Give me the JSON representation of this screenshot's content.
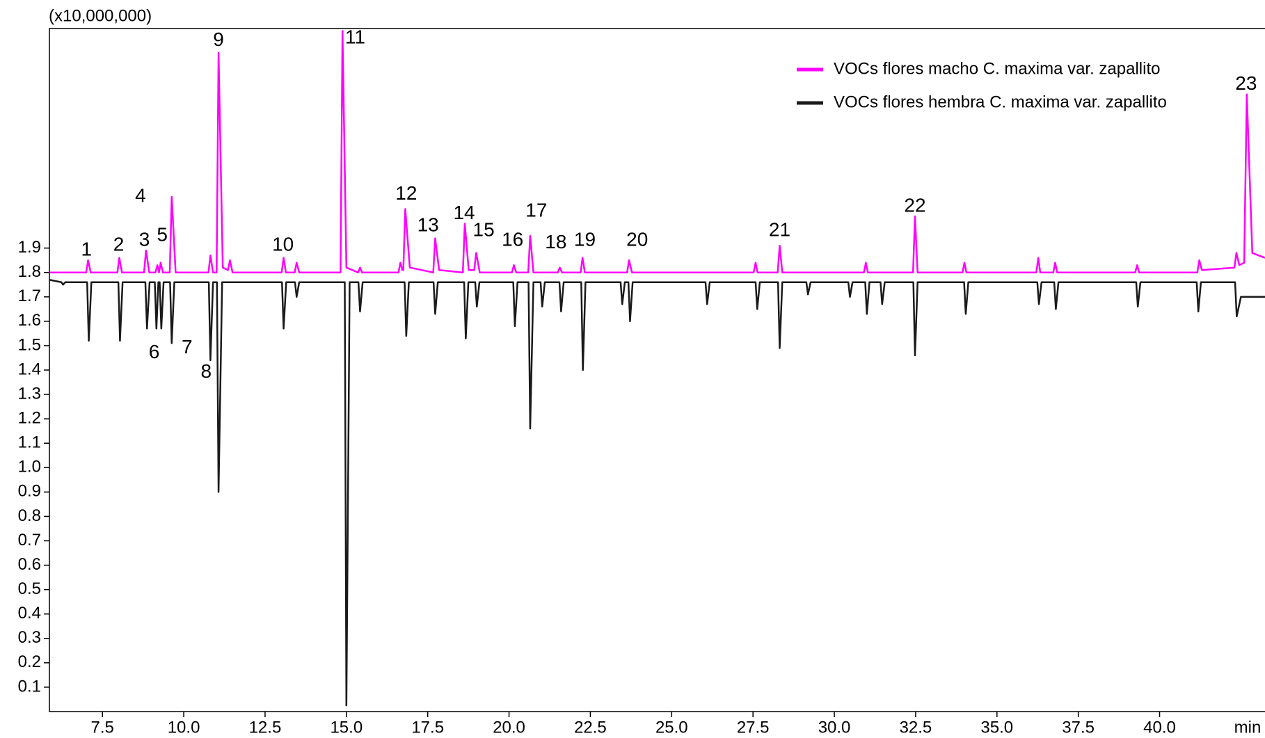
{
  "chart_data": {
    "type": "line",
    "y_unit_label": "(x10,000,000)",
    "x_label": "min",
    "xlim": [
      5.87,
      43.24
    ],
    "ylim": [
      0,
      2.8
    ],
    "xticks": [
      7.5,
      {
        "value": 10,
        "label": "10.0"
      },
      12.5,
      {
        "value": 15,
        "label": "15.0"
      },
      17.5,
      {
        "value": 20,
        "label": "20.0"
      },
      22.5,
      {
        "value": 25,
        "label": "25.0"
      },
      27.5,
      {
        "value": 30,
        "label": "30.0"
      },
      32.5,
      {
        "value": 35,
        "label": "35.0"
      },
      37.5,
      {
        "value": 40,
        "label": "40.0"
      }
    ],
    "yticks": [
      0.1,
      0.2,
      0.3,
      0.4,
      0.5,
      0.6,
      0.7,
      0.8,
      0.9,
      {
        "value": 1,
        "label": "1.0"
      },
      1.1,
      1.2,
      1.3,
      1.4,
      1.5,
      1.6,
      1.7,
      1.8,
      1.9
    ],
    "grid": false,
    "legend": "upper right",
    "series": [
      {
        "name": "VOCs flores macho C. maxima var. zapallito",
        "color": "#ff00ff",
        "x": [
          5.87,
          7.0,
          7.06,
          7.14,
          7.96,
          8.02,
          8.1,
          8.78,
          8.84,
          8.94,
          9.13,
          9.19,
          9.24,
          9.29,
          9.36,
          9.57,
          9.63,
          9.75,
          10.76,
          10.82,
          10.9,
          11.01,
          11.07,
          11.2,
          11.36,
          11.42,
          11.5,
          13.01,
          13.07,
          13.14,
          13.41,
          13.47,
          13.55,
          14.82,
          14.88,
          15.0,
          15.36,
          15.42,
          15.48,
          16.6,
          16.66,
          16.72,
          16.75,
          16.81,
          16.95,
          17.67,
          17.73,
          17.85,
          18.58,
          18.64,
          18.76,
          18.93,
          18.99,
          19.1,
          20.09,
          20.15,
          20.22,
          20.59,
          20.65,
          20.75,
          21.5,
          21.56,
          21.63,
          22.2,
          22.26,
          22.33,
          23.63,
          23.69,
          23.78,
          27.52,
          27.58,
          27.64,
          28.26,
          28.32,
          28.4,
          30.91,
          30.97,
          31.03,
          32.42,
          32.48,
          32.56,
          33.94,
          34.0,
          34.06,
          36.21,
          36.27,
          36.33,
          36.73,
          36.79,
          36.85,
          39.25,
          39.31,
          39.37,
          41.16,
          41.22,
          41.3,
          42.3,
          42.36,
          42.45,
          42.6,
          42.68,
          42.85,
          43.24
        ],
        "values": [
          1.8,
          1.8,
          1.85,
          1.8,
          1.8,
          1.86,
          1.8,
          1.8,
          1.89,
          1.8,
          1.8,
          1.83,
          1.8,
          1.84,
          1.8,
          1.8,
          2.11,
          1.8,
          1.8,
          1.87,
          1.8,
          1.8,
          2.7,
          1.82,
          1.81,
          1.85,
          1.8,
          1.8,
          1.86,
          1.8,
          1.8,
          1.84,
          1.8,
          1.8,
          2.79,
          1.82,
          1.8,
          1.82,
          1.8,
          1.8,
          1.84,
          1.81,
          1.81,
          2.06,
          1.82,
          1.8,
          1.94,
          1.81,
          1.8,
          2.0,
          1.81,
          1.81,
          1.88,
          1.8,
          1.8,
          1.83,
          1.8,
          1.8,
          1.95,
          1.8,
          1.8,
          1.82,
          1.8,
          1.8,
          1.86,
          1.8,
          1.8,
          1.85,
          1.8,
          1.8,
          1.84,
          1.8,
          1.8,
          1.91,
          1.8,
          1.8,
          1.84,
          1.8,
          1.8,
          2.03,
          1.8,
          1.8,
          1.84,
          1.8,
          1.8,
          1.86,
          1.8,
          1.8,
          1.84,
          1.8,
          1.8,
          1.83,
          1.8,
          1.8,
          1.85,
          1.81,
          1.82,
          1.88,
          1.83,
          1.84,
          2.53,
          1.88,
          1.86
        ]
      },
      {
        "name": "VOCs flores hembra C. maxima var. zapallito",
        "color": "#1a1a1a",
        "x": [
          5.87,
          6.24,
          6.29,
          6.36,
          7.03,
          7.08,
          7.16,
          7.99,
          8.04,
          8.12,
          8.82,
          8.87,
          8.95,
          9.11,
          9.16,
          9.22,
          9.26,
          9.31,
          9.38,
          9.58,
          9.63,
          9.71,
          10.77,
          10.82,
          10.9,
          11.02,
          11.07,
          11.18,
          13.02,
          13.07,
          13.15,
          13.42,
          13.47,
          13.55,
          14.95,
          15.0,
          15.1,
          15.37,
          15.42,
          15.5,
          16.79,
          16.84,
          16.92,
          17.68,
          17.73,
          17.81,
          18.62,
          18.67,
          18.75,
          18.96,
          19.01,
          19.09,
          20.13,
          20.18,
          20.26,
          20.6,
          20.65,
          20.75,
          20.97,
          21.02,
          21.1,
          21.55,
          21.6,
          21.68,
          22.22,
          22.27,
          22.35,
          23.43,
          23.48,
          23.56,
          23.67,
          23.72,
          23.8,
          26.04,
          26.09,
          26.17,
          27.58,
          27.63,
          27.71,
          28.27,
          28.32,
          28.4,
          29.14,
          29.19,
          29.27,
          30.43,
          30.48,
          30.56,
          30.95,
          31.0,
          31.08,
          31.42,
          31.47,
          31.55,
          32.43,
          32.48,
          32.56,
          33.99,
          34.04,
          34.12,
          36.24,
          36.29,
          36.37,
          36.76,
          36.81,
          36.89,
          39.28,
          39.33,
          39.41,
          41.14,
          41.19,
          41.27,
          42.32,
          42.37,
          42.5,
          43.24
        ],
        "values": [
          1.77,
          1.76,
          1.75,
          1.76,
          1.76,
          1.52,
          1.76,
          1.76,
          1.52,
          1.76,
          1.76,
          1.57,
          1.76,
          1.76,
          1.57,
          1.76,
          1.76,
          1.57,
          1.76,
          1.76,
          1.51,
          1.76,
          1.76,
          1.44,
          1.76,
          1.76,
          0.9,
          1.76,
          1.76,
          1.57,
          1.76,
          1.76,
          1.7,
          1.76,
          1.76,
          0.025,
          1.76,
          1.76,
          1.64,
          1.76,
          1.76,
          1.54,
          1.76,
          1.76,
          1.63,
          1.76,
          1.76,
          1.53,
          1.76,
          1.76,
          1.66,
          1.76,
          1.76,
          1.58,
          1.76,
          1.76,
          1.16,
          1.76,
          1.76,
          1.66,
          1.76,
          1.76,
          1.64,
          1.76,
          1.76,
          1.4,
          1.76,
          1.76,
          1.67,
          1.76,
          1.76,
          1.6,
          1.76,
          1.76,
          1.67,
          1.76,
          1.76,
          1.65,
          1.76,
          1.76,
          1.49,
          1.76,
          1.76,
          1.71,
          1.76,
          1.76,
          1.7,
          1.76,
          1.76,
          1.63,
          1.76,
          1.76,
          1.67,
          1.76,
          1.76,
          1.46,
          1.76,
          1.76,
          1.63,
          1.76,
          1.76,
          1.67,
          1.76,
          1.76,
          1.65,
          1.76,
          1.76,
          1.66,
          1.76,
          1.76,
          1.64,
          1.76,
          1.76,
          1.62,
          1.7,
          1.7
        ]
      }
    ],
    "annotations": [
      {
        "text": "1",
        "x": 7.01,
        "y": 1.89
      },
      {
        "text": "2",
        "x": 8.0,
        "y": 1.91
      },
      {
        "text": "3",
        "x": 8.79,
        "y": 1.93
      },
      {
        "text": "4",
        "x": 8.67,
        "y": 2.11
      },
      {
        "text": "5",
        "x": 9.34,
        "y": 1.95
      },
      {
        "text": "6",
        "x": 9.09,
        "y": 1.47
      },
      {
        "text": "7",
        "x": 10.1,
        "y": 1.49
      },
      {
        "text": "8",
        "x": 10.69,
        "y": 1.39
      },
      {
        "text": "9",
        "x": 11.07,
        "y": 2.75
      },
      {
        "text": "10",
        "x": 13.05,
        "y": 1.91
      },
      {
        "text": "11",
        "x": 15.27,
        "y": 2.76
      },
      {
        "text": "12",
        "x": 16.84,
        "y": 2.12
      },
      {
        "text": "13",
        "x": 17.51,
        "y": 1.99
      },
      {
        "text": "14",
        "x": 18.62,
        "y": 2.04
      },
      {
        "text": "15",
        "x": 19.22,
        "y": 1.97
      },
      {
        "text": "16",
        "x": 20.11,
        "y": 1.93
      },
      {
        "text": "17",
        "x": 20.84,
        "y": 2.05
      },
      {
        "text": "18",
        "x": 21.44,
        "y": 1.92
      },
      {
        "text": "19",
        "x": 22.33,
        "y": 1.93
      },
      {
        "text": "20",
        "x": 23.94,
        "y": 1.93
      },
      {
        "text": "21",
        "x": 28.32,
        "y": 1.97
      },
      {
        "text": "22",
        "x": 32.48,
        "y": 2.07
      },
      {
        "text": "23",
        "x": 42.66,
        "y": 2.57
      }
    ]
  }
}
